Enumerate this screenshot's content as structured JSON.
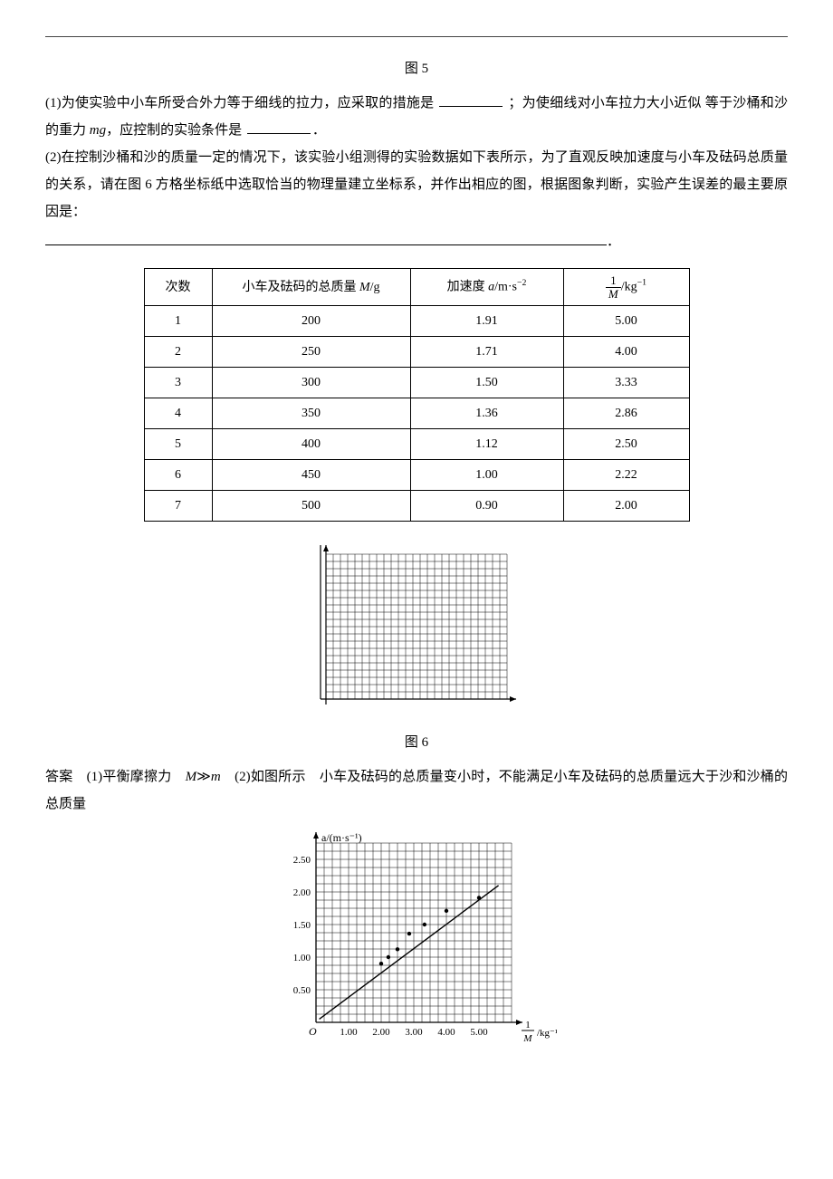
{
  "captions": {
    "fig5": "图 5",
    "fig6": "图 6"
  },
  "q1": {
    "line1a": "(1)为使实验中小车所受合外力等于细线的拉力，应采取的措施是",
    "line1b": "；为使细线对小车拉力大小近似",
    "line2a": "等于沙桶和沙的重力 ",
    "mg": "mg",
    "line2b": "，应控制的实验条件是",
    "line2c": "．"
  },
  "q2": {
    "p1": "(2)在控制沙桶和沙的质量一定的情况下，该实验小组测得的实验数据如下表所示，为了直观反映加速度与小车及砝码总质量的关系，请在图 6 方格坐标纸中选取恰当的物理量建立坐标系，并作出相应的图，根据图象判断，实验产生误差的最主要原因是："
  },
  "table": {
    "headers": {
      "col1": "次数",
      "col2_a": "小车及砝码的总质量 ",
      "col2_b": "M",
      "col2_c": "/g",
      "col3_a": "加速度 ",
      "col3_b": "a",
      "col3_c": "/m·s",
      "col3_sup": "−2",
      "col4_unit": "/kg",
      "col4_sup": "−1"
    },
    "rows": [
      {
        "n": "1",
        "m": "200",
        "a": "1.91",
        "inv": "5.00"
      },
      {
        "n": "2",
        "m": "250",
        "a": "1.71",
        "inv": "4.00"
      },
      {
        "n": "3",
        "m": "300",
        "a": "1.50",
        "inv": "3.33"
      },
      {
        "n": "4",
        "m": "350",
        "a": "1.36",
        "inv": "2.86"
      },
      {
        "n": "5",
        "m": "400",
        "a": "1.12",
        "inv": "2.50"
      },
      {
        "n": "6",
        "m": "450",
        "a": "1.00",
        "inv": "2.22"
      },
      {
        "n": "7",
        "m": "500",
        "a": "0.90",
        "inv": "2.00"
      }
    ]
  },
  "blank_grid": {
    "cols": 25,
    "rows": 20,
    "cell": 8,
    "stroke": "#000000",
    "stroke_w": 0.5,
    "arrow_color": "#000000"
  },
  "answer": {
    "prefix": "答案　(1)平衡摩擦力　",
    "cond_a": "M",
    "cond_gg": "≫",
    "cond_b": "m",
    "mid": "　(2)如图所示　小车及砝码的总质量变小时，不能满足小车及砝码的总质量远大于沙和沙桶的总质量"
  },
  "answer_chart": {
    "type": "scatter-line",
    "xlim": [
      0,
      6
    ],
    "ylim": [
      0,
      2.75
    ],
    "xticks": [
      "1.00",
      "2.00",
      "3.00",
      "4.00",
      "5.00"
    ],
    "yticks": [
      "0.50",
      "1.00",
      "1.50",
      "2.00",
      "2.50"
    ],
    "xlabel_frac_num": "1",
    "xlabel_frac_den": "M",
    "xlabel_unit": "/kg⁻¹",
    "ylabel": "a/(m·s⁻¹)",
    "origin_label": "O",
    "grid_cols": 24,
    "grid_rows": 22,
    "cell": 9,
    "grid_color": "#000000",
    "grid_w": 0.5,
    "axis_color": "#000000",
    "points": [
      {
        "x": 5.0,
        "y": 1.91
      },
      {
        "x": 4.0,
        "y": 1.71
      },
      {
        "x": 3.33,
        "y": 1.5
      },
      {
        "x": 2.86,
        "y": 1.36
      },
      {
        "x": 2.5,
        "y": 1.12
      },
      {
        "x": 2.22,
        "y": 1.0
      },
      {
        "x": 2.0,
        "y": 0.9
      }
    ],
    "point_r": 2.2,
    "point_color": "#000000",
    "line_start": {
      "x": 0.1,
      "y": 0.05
    },
    "line_end": {
      "x": 5.6,
      "y": 2.1
    },
    "line_color": "#000000",
    "line_w": 1.4,
    "tick_font": 11
  }
}
